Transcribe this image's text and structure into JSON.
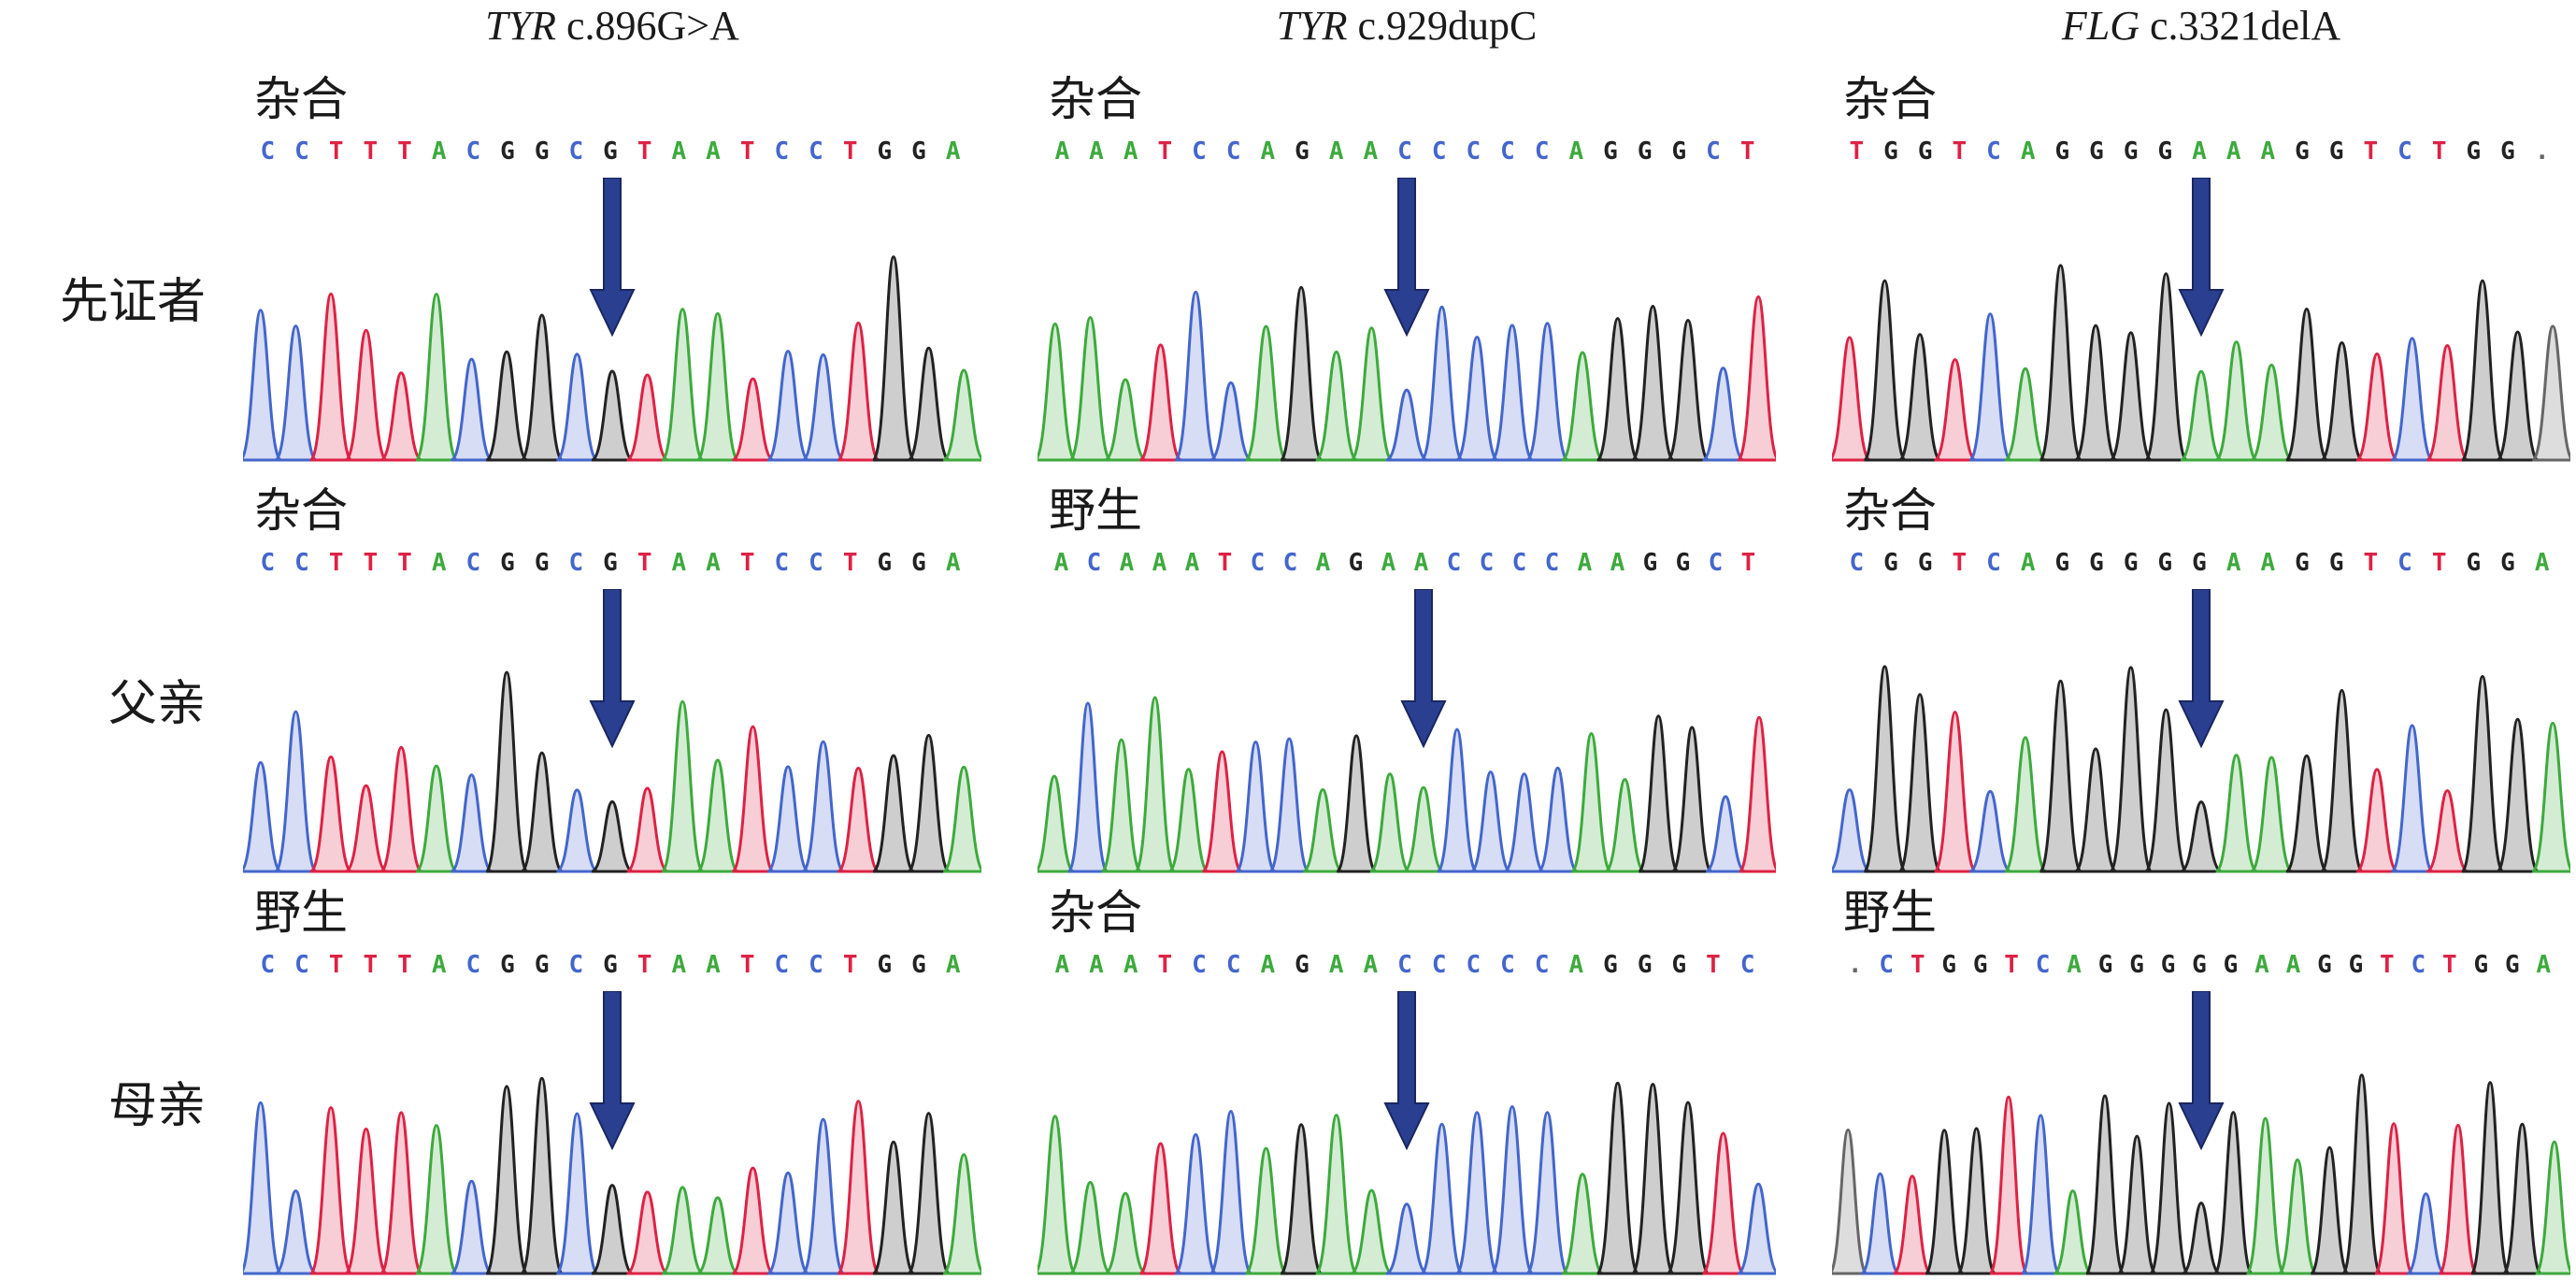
{
  "columns": [
    {
      "gene": "TYR",
      "variant": "c.896G>A"
    },
    {
      "gene": "TYR",
      "variant": "c.929dupC"
    },
    {
      "gene": "FLG",
      "variant": "c.3321delA"
    }
  ],
  "rows": [
    {
      "label": "先证者"
    },
    {
      "label": "父亲"
    },
    {
      "label": "母亲"
    }
  ],
  "panels": [
    {
      "status": "杂合",
      "sequence": "CCTTTACGGCGTAATCCTGGA"
    },
    {
      "status": "杂合",
      "sequence": "AAATCCAGAACCCCCAGGGCT"
    },
    {
      "status": "杂合",
      "sequence": "TGGTCAGGGGAAAGGTCTGG."
    },
    {
      "status": "杂合",
      "sequence": "CCTTTACGGCGTAATCCTGGA"
    },
    {
      "status": "野生",
      "sequence": "ACAAATCCAGAACCCCAAGGCT"
    },
    {
      "status": "杂合",
      "sequence": "CGGTCAGGGGGAAGGTCTGGA"
    },
    {
      "status": "野生",
      "sequence": "CCTTTACGGCGTAATCCTGGA"
    },
    {
      "status": "杂合",
      "sequence": "AAATCCAGAACCCCCAGGGTC"
    },
    {
      "status": "野生",
      "sequence": ".CTGGTCAGGGGGAAGGTCTGGA"
    }
  ],
  "colors": {
    "A": "#3daa3d",
    "C": "#4466cc",
    "G": "#222222",
    "T": "#dd2244",
    "arrow": "#2a3f8f"
  }
}
